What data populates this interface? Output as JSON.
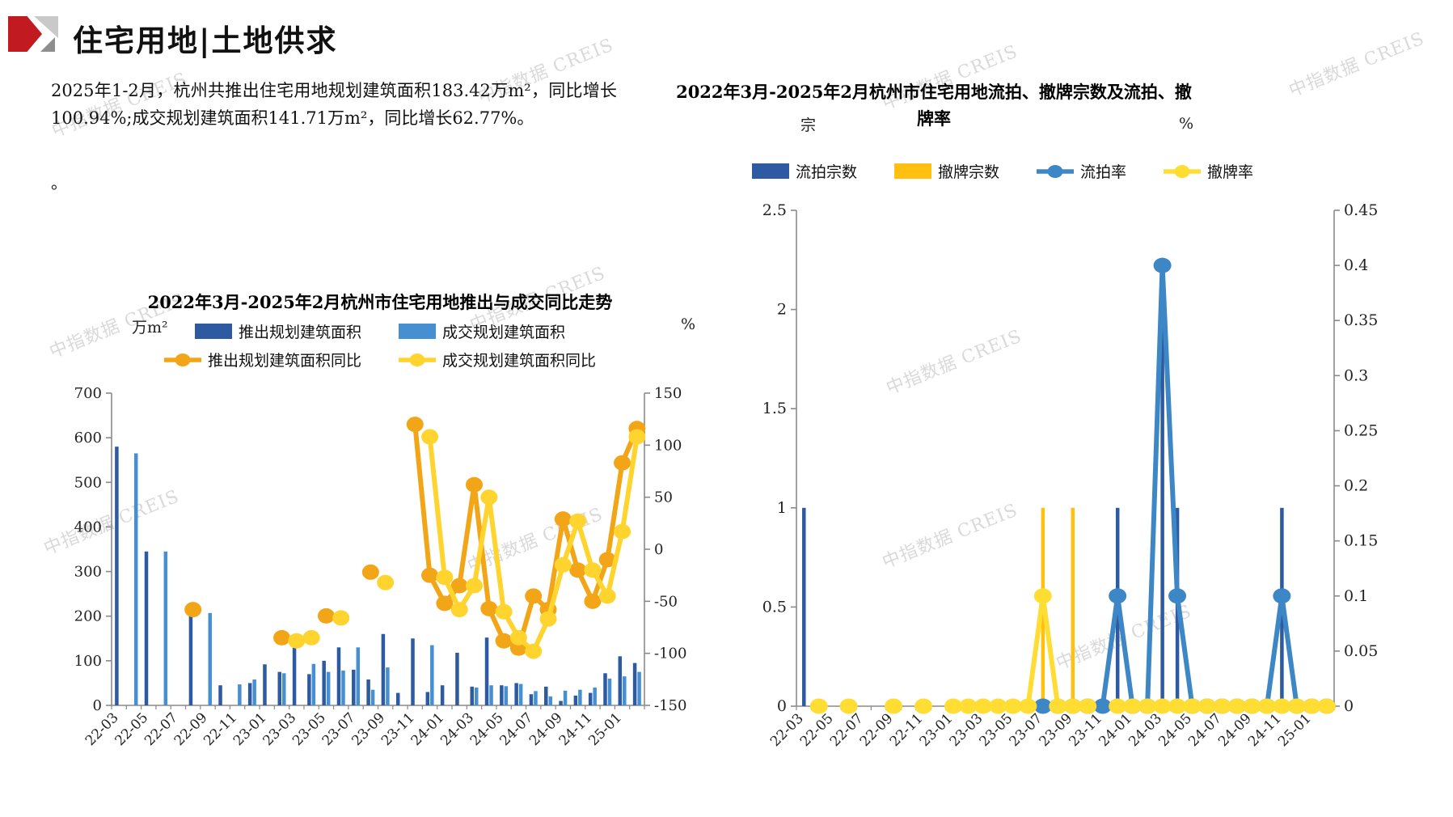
{
  "page": {
    "title": "住宅用地|土地供求",
    "paragraph": "2025年1-2月，杭州共推出住宅用地规划建筑面积183.42万m²，同比增长100.94%;成交规划建筑面积141.71万m²，同比增长62.77%。",
    "stray_period": "。"
  },
  "watermark": {
    "text": "中指数据 CREIS"
  },
  "chart_data": [
    {
      "type": "bar+line",
      "title": "2022年3月-2025年2月杭州市住宅用地推出与成交同比走势",
      "left_axis_unit": "万m²",
      "right_axis_unit": "%",
      "left_ylim": [
        0,
        700
      ],
      "left_ticks": [
        0,
        100,
        200,
        300,
        400,
        500,
        600,
        700
      ],
      "right_ylim": [
        -150,
        150
      ],
      "right_ticks": [
        150,
        100,
        50,
        0,
        -50,
        -100,
        -150
      ],
      "tick_every": 2,
      "grid": false,
      "legend_position": "top",
      "categories": [
        "22-03",
        "22-04",
        "22-05",
        "22-06",
        "22-07",
        "22-08",
        "22-09",
        "22-10",
        "22-11",
        "22-12",
        "23-01",
        "23-02",
        "23-03",
        "23-04",
        "23-05",
        "23-06",
        "23-07",
        "23-08",
        "23-09",
        "23-10",
        "23-11",
        "23-12",
        "24-01",
        "24-02",
        "24-03",
        "24-04",
        "24-05",
        "24-06",
        "24-07",
        "24-08",
        "24-09",
        "24-10",
        "24-11",
        "24-12",
        "25-01",
        "25-02"
      ],
      "series": [
        {
          "name": "推出规划建筑面积",
          "type": "bar",
          "axis": "left",
          "color": "#2d5aa0",
          "values": [
            580,
            0,
            345,
            0,
            0,
            210,
            0,
            45,
            0,
            50,
            92,
            75,
            155,
            70,
            100,
            130,
            80,
            58,
            160,
            28,
            150,
            30,
            45,
            118,
            42,
            152,
            45,
            50,
            25,
            42,
            10,
            22,
            28,
            72,
            110,
            95
          ]
        },
        {
          "name": "成交规划建筑面积",
          "type": "bar",
          "axis": "left",
          "color": "#4690d2",
          "values": [
            0,
            565,
            0,
            345,
            0,
            0,
            207,
            0,
            47,
            58,
            0,
            72,
            0,
            93,
            75,
            78,
            130,
            35,
            85,
            0,
            0,
            135,
            0,
            0,
            40,
            45,
            43,
            48,
            32,
            20,
            33,
            35,
            40,
            60,
            65,
            75
          ]
        },
        {
          "name": "推出规划建筑面积同比",
          "type": "line",
          "axis": "right",
          "color": "#f2a516",
          "values": [
            null,
            null,
            null,
            null,
            null,
            -58,
            null,
            null,
            null,
            null,
            null,
            -85,
            null,
            null,
            -64,
            null,
            null,
            -22,
            null,
            null,
            120,
            -25,
            -52,
            -35,
            62,
            -57,
            -88,
            -95,
            -45,
            -58,
            29,
            -20,
            -50,
            -10,
            83,
            116
          ]
        },
        {
          "name": "成交规划建筑面积同比",
          "type": "line",
          "axis": "right",
          "color": "#ffd42e",
          "values": [
            null,
            null,
            null,
            null,
            null,
            null,
            null,
            null,
            null,
            null,
            null,
            null,
            -88,
            -85,
            null,
            -66,
            null,
            null,
            -32,
            null,
            null,
            108,
            -27,
            -58,
            -35,
            50,
            -60,
            -85,
            -98,
            -67,
            -15,
            27,
            -20,
            -45,
            17,
            108
          ]
        }
      ]
    },
    {
      "type": "bar+line",
      "title": "2022年3月-2025年2月杭州市住宅用地流拍、撤牌宗数及流拍、撤牌率",
      "title_line1": "2022年3月-2025年2月杭州市住宅用地流拍、撤牌宗数及流拍、撤",
      "title_line2": "牌率",
      "left_axis_unit": "宗",
      "right_axis_unit": "%",
      "left_ylim": [
        0,
        2.5
      ],
      "left_ticks": [
        0,
        0.5,
        1,
        1.5,
        2,
        2.5
      ],
      "right_ylim": [
        0,
        0.45
      ],
      "right_ticks": [
        0,
        0.05,
        0.1,
        0.15,
        0.2,
        0.25,
        0.3,
        0.35,
        0.4,
        0.45
      ],
      "tick_every": 2,
      "grid": false,
      "legend_position": "top",
      "categories": [
        "22-03",
        "22-04",
        "22-05",
        "22-06",
        "22-07",
        "22-08",
        "22-09",
        "22-10",
        "22-11",
        "22-12",
        "23-01",
        "23-02",
        "23-03",
        "23-04",
        "23-05",
        "23-06",
        "23-07",
        "23-08",
        "23-09",
        "23-10",
        "23-11",
        "23-12",
        "24-01",
        "24-02",
        "24-03",
        "24-04",
        "24-05",
        "24-06",
        "24-07",
        "24-08",
        "24-09",
        "24-10",
        "24-11",
        "24-12",
        "25-01",
        "25-02"
      ],
      "series": [
        {
          "name": "流拍宗数",
          "type": "bar",
          "axis": "left",
          "color": "#2d5aa0",
          "values": [
            1,
            0,
            0,
            0,
            0,
            0,
            0,
            0,
            0,
            0,
            0,
            0,
            0,
            0,
            0,
            0,
            0,
            0,
            0,
            0,
            0,
            1,
            0,
            0,
            2,
            1,
            0,
            0,
            0,
            0,
            0,
            0,
            1,
            0,
            0,
            0
          ]
        },
        {
          "name": "撤牌宗数",
          "type": "bar",
          "axis": "left",
          "color": "#ffc010",
          "values": [
            0,
            0,
            0,
            0,
            0,
            0,
            0,
            0,
            0,
            0,
            0,
            0,
            0,
            0,
            0,
            0,
            1,
            0,
            1,
            0,
            0,
            0,
            0,
            0,
            0,
            0,
            0,
            0,
            0,
            0,
            0,
            0,
            0,
            0,
            0,
            0
          ]
        },
        {
          "name": "流拍率",
          "type": "line",
          "axis": "right",
          "color": "#3e87c6",
          "values": [
            null,
            null,
            null,
            null,
            null,
            null,
            null,
            null,
            null,
            null,
            null,
            null,
            null,
            null,
            null,
            null,
            0,
            0,
            0,
            0,
            0,
            0.1,
            0,
            0,
            0.4,
            0.1,
            0,
            0,
            0,
            0,
            0,
            0,
            0.1,
            0,
            0,
            0
          ]
        },
        {
          "name": "撤牌率",
          "type": "line",
          "axis": "right",
          "color": "#ffdd33",
          "values": [
            null,
            0,
            null,
            0,
            null,
            null,
            0,
            null,
            0,
            null,
            0,
            0,
            0,
            0,
            0,
            0,
            0.1,
            0,
            0,
            0,
            null,
            0,
            0,
            0,
            0,
            0,
            0,
            0,
            0,
            0,
            0,
            0,
            0,
            0,
            0,
            0
          ]
        }
      ]
    }
  ]
}
